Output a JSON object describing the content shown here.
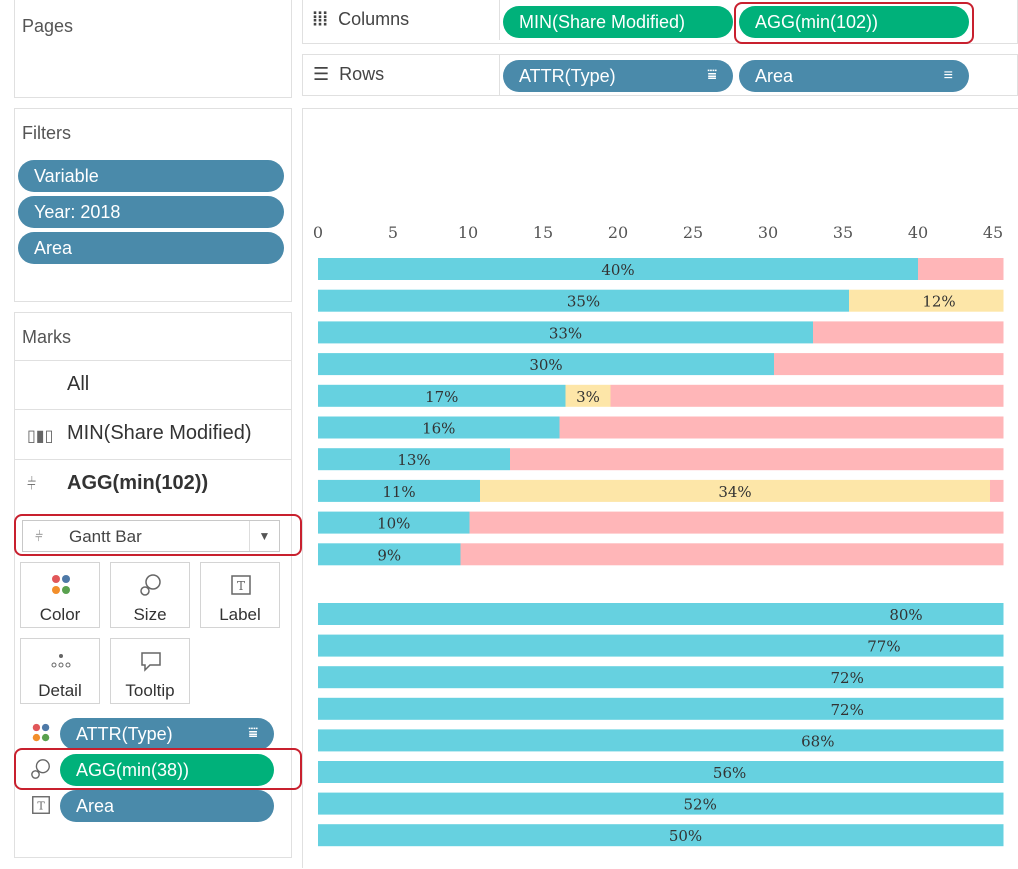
{
  "pages": {
    "title": "Pages"
  },
  "filters": {
    "title": "Filters",
    "items": [
      "Variable",
      "Year: 2018",
      "Area"
    ]
  },
  "marks": {
    "title": "Marks",
    "all_label": "All",
    "min_share_label": "MIN(Share Modified)",
    "agg_label": "AGG(min(102))",
    "mark_type": "Gantt Bar",
    "buttons": {
      "color": "Color",
      "size": "Size",
      "label": "Label",
      "detail": "Detail",
      "tooltip": "Tooltip"
    },
    "shelf_pills": {
      "color": "ATTR(Type)",
      "size": "AGG(min(38))",
      "label": "Area"
    }
  },
  "columns_shelf": {
    "label": "Columns",
    "pills": [
      "MIN(Share Modified)",
      "AGG(min(102))"
    ]
  },
  "rows_shelf": {
    "label": "Rows",
    "pills": [
      "ATTR(Type)",
      "Area"
    ]
  },
  "colors": {
    "teal": "#66d1e0",
    "pink": "#ffb6b8",
    "yellow": "#fde6a8",
    "pill_blue": "#4a8aaa",
    "pill_green": "#00b17a",
    "highlight": "#c8202e"
  },
  "chart_data": {
    "type": "bar",
    "x_ticks": [
      0,
      5,
      10,
      15,
      20,
      25,
      30,
      35,
      40,
      45
    ],
    "xlim": [
      0,
      45.7
    ],
    "group1": [
      {
        "label": "40%",
        "teal": 40,
        "yellow": null,
        "yellow_label": ""
      },
      {
        "label": "35%",
        "teal": 35.4,
        "yellow": 12,
        "yellow_label": "12%"
      },
      {
        "label": "33%",
        "teal": 33,
        "yellow": null,
        "yellow_label": ""
      },
      {
        "label": "30%",
        "teal": 30.4,
        "yellow": null,
        "yellow_label": ""
      },
      {
        "label": "17%",
        "teal": 16.5,
        "yellow": 3,
        "yellow_label": "3%"
      },
      {
        "label": "16%",
        "teal": 16.1,
        "yellow": null,
        "yellow_label": ""
      },
      {
        "label": "13%",
        "teal": 12.8,
        "yellow": null,
        "yellow_label": ""
      },
      {
        "label": "11%",
        "teal": 10.8,
        "yellow": 34,
        "yellow_label": "34%"
      },
      {
        "label": "10%",
        "teal": 10.1,
        "yellow": null,
        "yellow_label": ""
      },
      {
        "label": "9%",
        "teal": 9.5,
        "yellow": null,
        "yellow_label": ""
      }
    ],
    "group2": [
      {
        "label": "80%"
      },
      {
        "label": "77%"
      },
      {
        "label": "72%"
      },
      {
        "label": "72%"
      },
      {
        "label": "68%"
      },
      {
        "label": "56%"
      },
      {
        "label": "52%"
      },
      {
        "label": "50%"
      }
    ]
  }
}
